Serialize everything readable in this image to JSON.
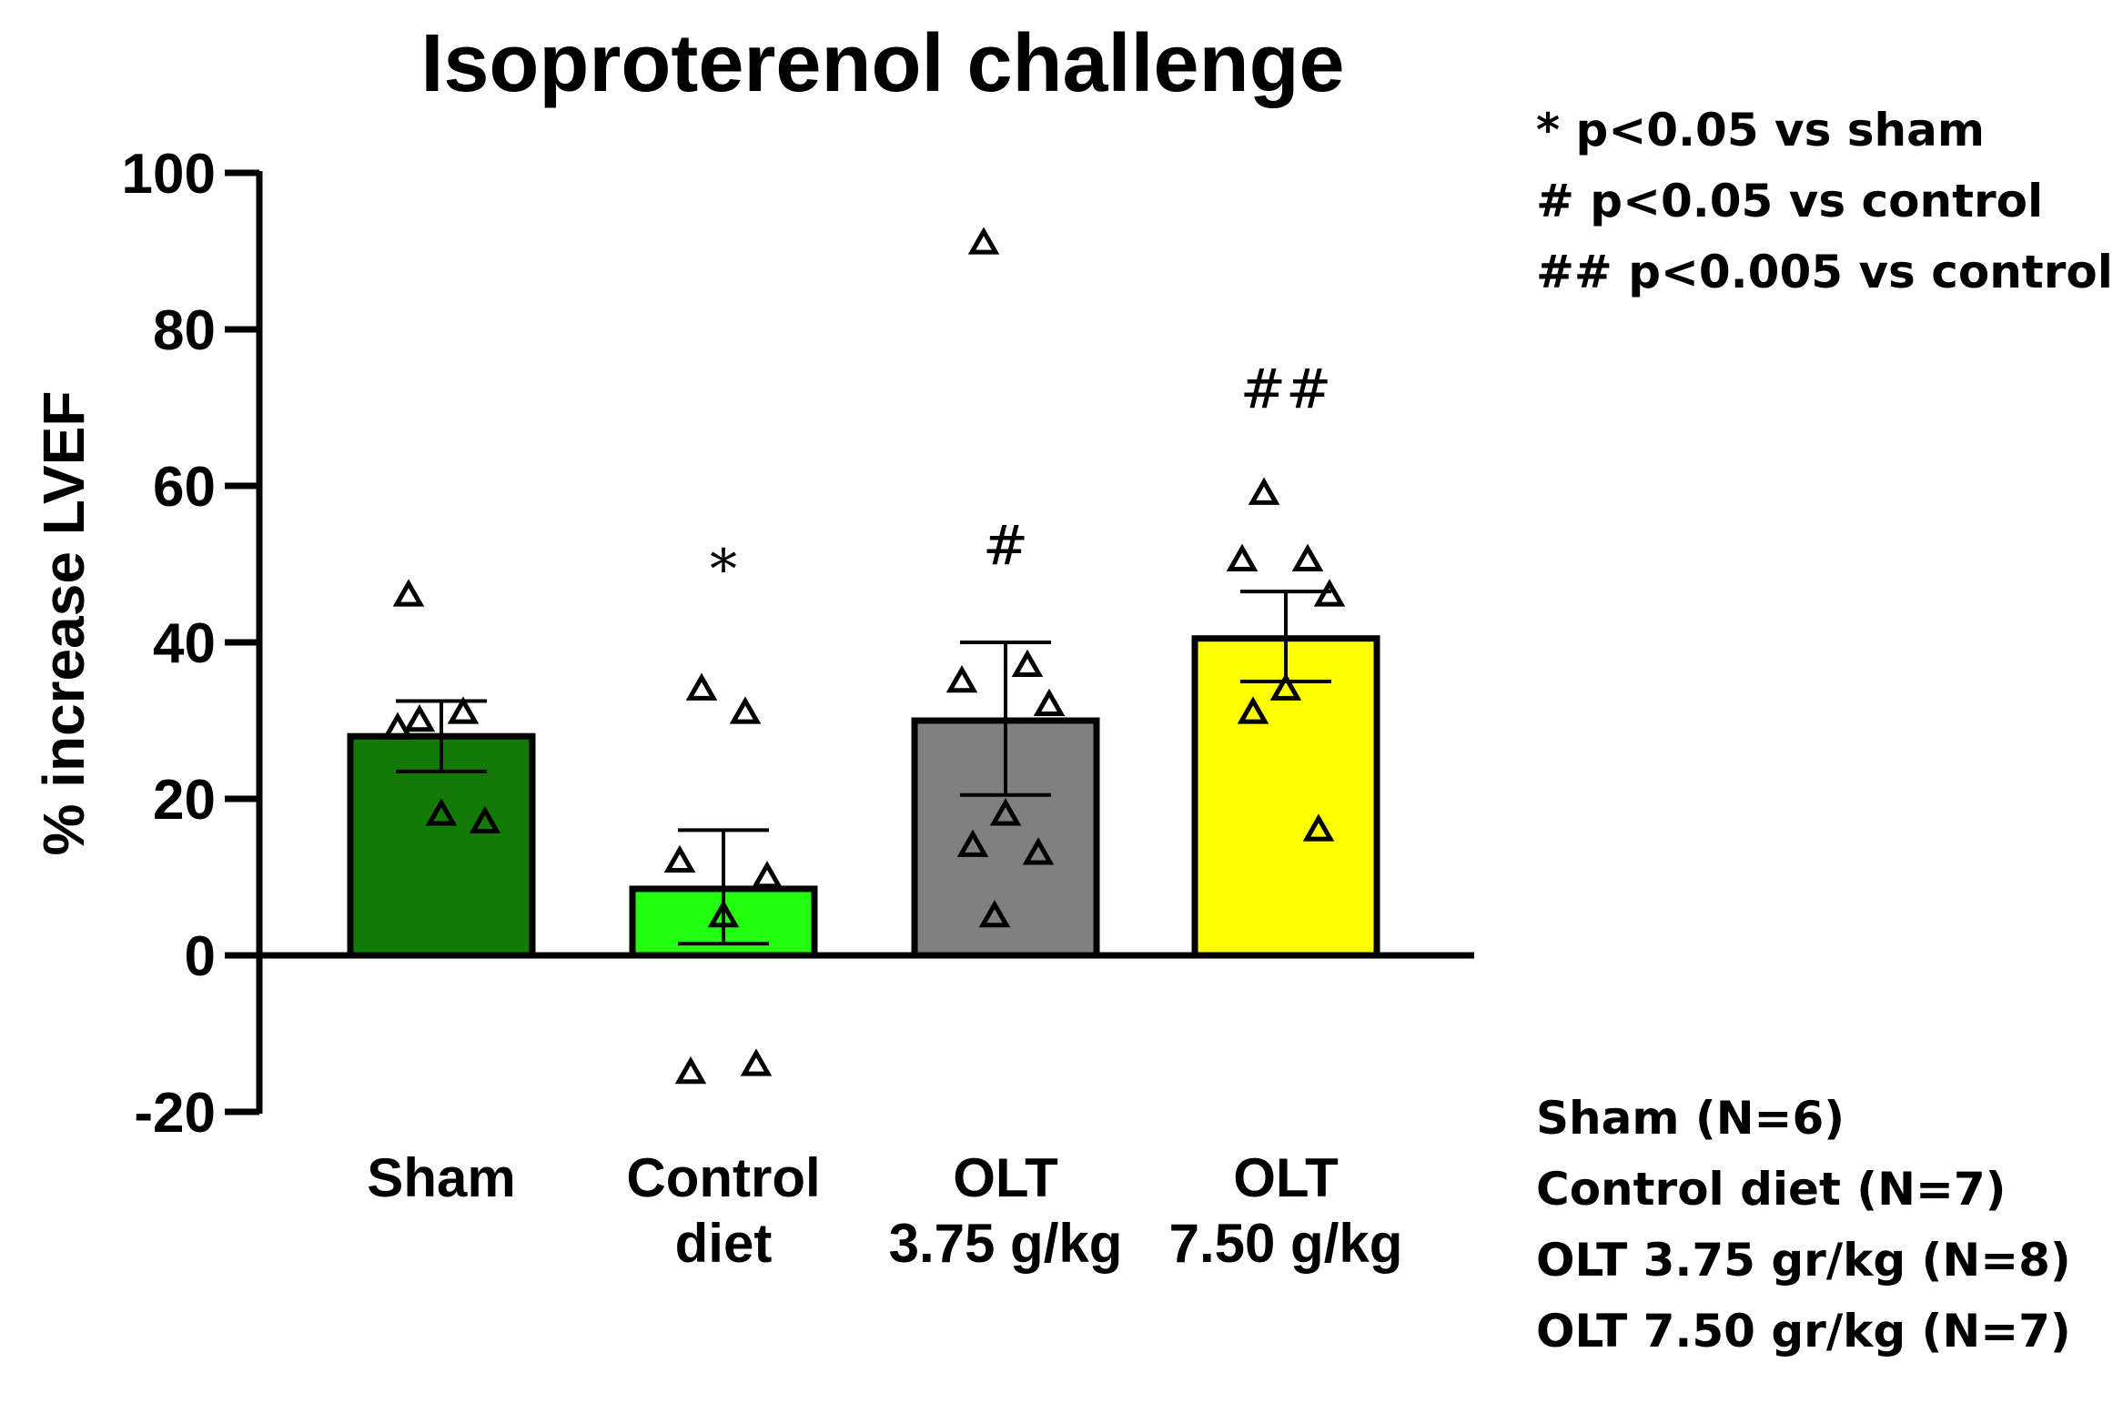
{
  "chart_data": {
    "type": "bar",
    "title": "Isoproterenol challenge",
    "ylabel": "% increase LVEF",
    "xlabel": "",
    "ylim": [
      -20,
      100
    ],
    "yticks": [
      -20,
      0,
      20,
      40,
      60,
      80,
      100
    ],
    "ytick_labels": [
      "-20",
      "0",
      "20",
      "40",
      "60",
      "80",
      "100"
    ],
    "categories": [
      {
        "lines": [
          "Sham"
        ]
      },
      {
        "lines": [
          "Control",
          "diet"
        ]
      },
      {
        "lines": [
          "OLT",
          "3.75 g/kg"
        ]
      },
      {
        "lines": [
          "OLT",
          "7.50 g/kg"
        ]
      }
    ],
    "values": [
      28,
      8.5,
      30,
      40.5
    ],
    "error": [
      [
        23.5,
        32.5
      ],
      [
        1.5,
        16
      ],
      [
        20.5,
        40
      ],
      [
        35,
        46.5
      ]
    ],
    "colors": [
      "#147a07",
      "#22ff0f",
      "#808080",
      "#ffff00"
    ],
    "points": [
      [
        30,
        31,
        29,
        17,
        18,
        46
      ],
      [
        34,
        31,
        12,
        10,
        5,
        -15,
        -14
      ],
      [
        91,
        37,
        35,
        32,
        18,
        14,
        13,
        5
      ],
      [
        59,
        50.5,
        50.5,
        46,
        34,
        31,
        16
      ]
    ],
    "significance": [
      "",
      "*",
      "#",
      "##"
    ],
    "significance_y": [
      null,
      47,
      50,
      70
    ],
    "grid": false
  },
  "legend": {
    "significance_notes": [
      "* p<0.05 vs sham",
      "# p<0.05 vs control",
      "## p<0.005 vs control"
    ],
    "group_sizes": [
      "Sham (N=6)",
      "Control diet (N=7)",
      "OLT 3.75 gr/kg (N=8)",
      "OLT 7.50 gr/kg (N=7)"
    ]
  }
}
